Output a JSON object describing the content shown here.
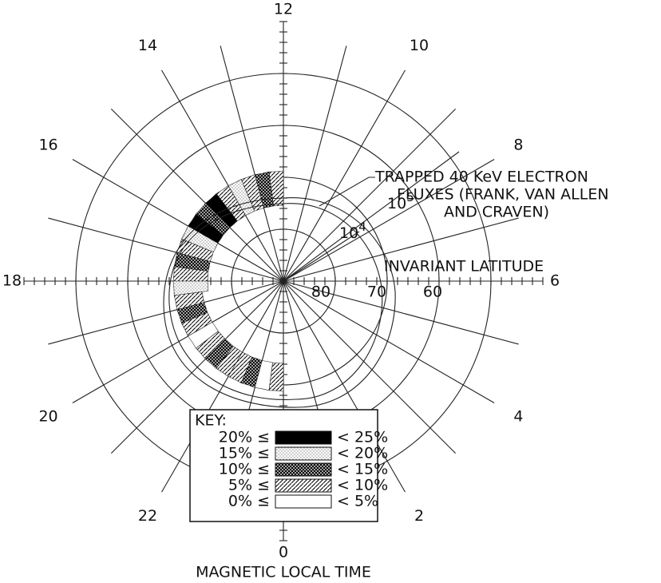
{
  "hour_labels": [
    "0",
    "2",
    "4",
    "6",
    "8",
    "10",
    "12",
    "14",
    "16",
    "18",
    "20",
    "22"
  ],
  "latitude_labels": [
    "80",
    "70",
    "60"
  ],
  "annotation": [
    "TRAPPED 40 KeV ELECTRON",
    "FLUXES (FRANK, VAN ALLEN",
    "AND CRAVEN)"
  ],
  "flux_labels": [
    {
      "base": "10",
      "exp": "5"
    },
    {
      "base": "10",
      "exp": "4"
    }
  ],
  "latitude_axis_label": "INVARIANT LATITUDE",
  "time_axis_label": "MAGNETIC LOCAL TIME",
  "key": {
    "title": "KEY:",
    "rows": [
      {
        "lower": "20% ≤",
        "upper": "< 25%"
      },
      {
        "lower": "15% ≤",
        "upper": "< 20%"
      },
      {
        "lower": "10% ≤",
        "upper": "< 15%"
      },
      {
        "lower": "5% ≤",
        "upper": "< 10%"
      },
      {
        "lower": "0% ≤",
        "upper": "< 5%"
      }
    ]
  }
}
